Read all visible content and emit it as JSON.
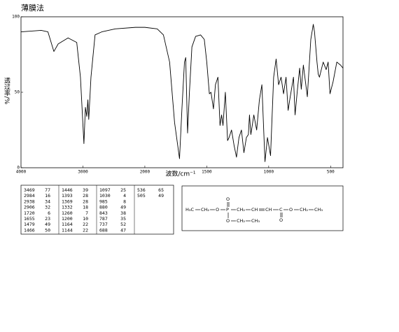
{
  "chart_data": {
    "type": "line",
    "title": "薄膜法",
    "x_label": "波数/cm⁻¹",
    "y_label": "透过率/%",
    "x": [
      4000,
      3674,
      3565,
      3469,
      3400,
      3240,
      3100,
      3040,
      2984,
      2960,
      2938,
      2920,
      2906,
      2870,
      2804,
      2696,
      2478,
      2152,
      2000,
      1900,
      1850,
      1800,
      1760,
      1720,
      1700,
      1680,
      1670,
      1655,
      1640,
      1620,
      1590,
      1550,
      1520,
      1500,
      1479,
      1466,
      1446,
      1430,
      1410,
      1393,
      1380,
      1369,
      1350,
      1332,
      1320,
      1300,
      1280,
      1260,
      1240,
      1220,
      1200,
      1180,
      1164,
      1155,
      1144,
      1120,
      1097,
      1075,
      1055,
      1030,
      1010,
      985,
      960,
      940,
      920,
      900,
      880,
      860,
      843,
      830,
      800,
      787,
      770,
      750,
      737,
      720,
      688,
      660,
      640,
      630,
      610,
      600,
      590,
      560,
      536,
      520,
      505,
      480,
      450,
      420,
      400
    ],
    "series": [
      {
        "color": "#000000",
        "values": [
          90,
          91,
          90,
          77,
          82,
          86,
          83,
          60,
          16,
          40,
          34,
          45,
          32,
          60,
          88,
          90,
          92,
          93,
          93,
          92,
          88,
          70,
          30,
          6,
          40,
          70,
          73,
          23,
          50,
          80,
          87,
          88,
          85,
          70,
          49,
          50,
          39,
          55,
          60,
          28,
          35,
          28,
          50,
          18,
          20,
          25,
          15,
          7,
          20,
          25,
          10,
          20,
          22,
          35,
          22,
          35,
          25,
          45,
          55,
          4,
          20,
          8,
          60,
          72,
          55,
          60,
          49,
          60,
          38,
          45,
          60,
          35,
          50,
          66,
          52,
          68,
          47,
          85,
          95,
          90,
          70,
          62,
          60,
          70,
          65,
          70,
          49,
          57,
          70,
          68,
          66
        ]
      }
    ],
    "xlim": [
      4000,
      400
    ],
    "xticks": [
      4000,
      3000,
      2000,
      1500,
      1000,
      500
    ],
    "ylim": [
      0,
      100
    ],
    "yticks": [
      0,
      50,
      100
    ],
    "grid": false
  },
  "peak_table": {
    "rows": [
      [
        3469,
        77
      ],
      [
        2984,
        16
      ],
      [
        2938,
        34
      ],
      [
        2906,
        32
      ],
      [
        1720,
        6
      ],
      [
        1655,
        23
      ],
      [
        1479,
        49
      ],
      [
        1466,
        50
      ],
      [
        1446,
        39
      ],
      [
        1393,
        28
      ],
      [
        1369,
        28
      ],
      [
        1332,
        18
      ],
      [
        1260,
        7
      ],
      [
        1200,
        10
      ],
      [
        1164,
        22
      ],
      [
        1144,
        22
      ],
      [
        1097,
        25
      ],
      [
        1030,
        4
      ],
      [
        985,
        8
      ],
      [
        880,
        49
      ],
      [
        843,
        38
      ],
      [
        787,
        35
      ],
      [
        737,
        52
      ],
      [
        688,
        47
      ],
      [
        536,
        65
      ],
      [
        505,
        49
      ]
    ]
  },
  "structure": {
    "atoms": [
      "H₃C",
      "CH₂",
      "O",
      "P",
      "CH₂",
      "CH",
      "CH",
      "C",
      "O",
      "CH₂",
      "CH₃",
      "O",
      "O",
      "CH₂",
      "CH₃",
      "O"
    ]
  }
}
